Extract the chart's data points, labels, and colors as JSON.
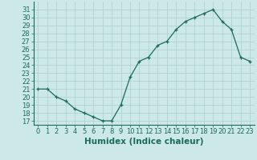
{
  "x": [
    0,
    1,
    2,
    3,
    4,
    5,
    6,
    7,
    8,
    9,
    10,
    11,
    12,
    13,
    14,
    15,
    16,
    17,
    18,
    19,
    20,
    21,
    22,
    23
  ],
  "y": [
    21,
    21,
    20,
    19.5,
    18.5,
    18,
    17.5,
    17,
    17,
    19,
    22.5,
    24.5,
    25,
    26.5,
    27,
    28.5,
    29.5,
    30,
    30.5,
    31,
    29.5,
    28.5,
    25,
    24.5
  ],
  "line_color": "#1a6b5a",
  "bg_color": "#cce8e8",
  "grid_color": "#aacfcf",
  "xlabel": "Humidex (Indice chaleur)",
  "ylim": [
    16.5,
    32
  ],
  "xlim": [
    -0.5,
    23.5
  ],
  "yticks": [
    17,
    18,
    19,
    20,
    21,
    22,
    23,
    24,
    25,
    26,
    27,
    28,
    29,
    30,
    31
  ],
  "xticks": [
    0,
    1,
    2,
    3,
    4,
    5,
    6,
    7,
    8,
    9,
    10,
    11,
    12,
    13,
    14,
    15,
    16,
    17,
    18,
    19,
    20,
    21,
    22,
    23
  ],
  "axis_color": "#1a6b5a",
  "tick_font_size": 6,
  "xlabel_font_size": 7.5
}
